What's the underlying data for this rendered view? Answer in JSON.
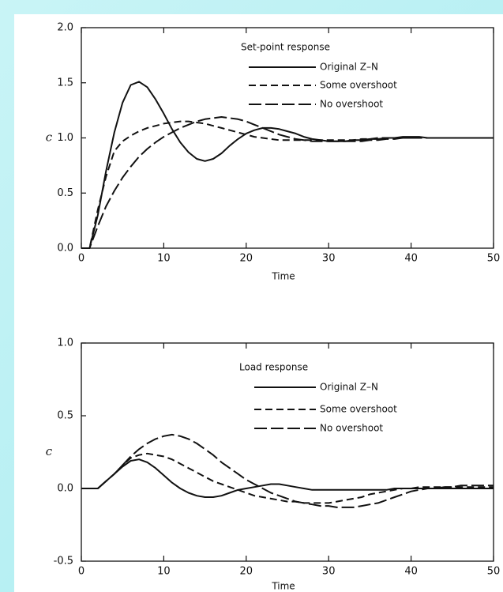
{
  "chart_data": [
    {
      "type": "line",
      "legend_title": "Set-point response",
      "x_label": "Time",
      "y_label": "c",
      "xlim": [
        0,
        50
      ],
      "xticks": [
        0,
        10,
        20,
        30,
        40,
        50
      ],
      "ylim": [
        0,
        2
      ],
      "yticks": [
        {
          "value": 0,
          "label": "0.0"
        },
        0.5,
        {
          "value": 1,
          "label": "1.0"
        },
        1.5,
        {
          "value": 2,
          "label": "2.0"
        }
      ],
      "x": [
        0,
        1,
        2,
        3,
        4,
        5,
        6,
        7,
        8,
        9,
        10,
        11,
        12,
        13,
        14,
        15,
        16,
        17,
        18,
        19,
        20,
        21,
        22,
        23,
        24,
        25,
        26,
        27,
        28,
        29,
        30,
        31,
        32,
        33,
        34,
        35,
        36,
        37,
        38,
        39,
        40,
        41,
        42,
        43,
        44,
        45,
        46,
        47,
        48,
        49,
        50
      ],
      "series": [
        {
          "name": "Original Z–N",
          "color": "#111111",
          "style": "solid",
          "values": [
            0,
            0,
            0.3,
            0.7,
            1.05,
            1.32,
            1.48,
            1.51,
            1.46,
            1.35,
            1.22,
            1.08,
            0.96,
            0.87,
            0.81,
            0.79,
            0.81,
            0.86,
            0.93,
            0.99,
            1.04,
            1.07,
            1.09,
            1.09,
            1.08,
            1.06,
            1.04,
            1.01,
            0.99,
            0.98,
            0.97,
            0.97,
            0.97,
            0.98,
            0.98,
            0.99,
            0.99,
            1.0,
            1.0,
            1.01,
            1.01,
            1.01,
            1.0,
            1.0,
            1.0,
            1.0,
            1.0,
            1.0,
            1.0,
            1.0,
            1.0
          ]
        },
        {
          "name": "Some overshoot",
          "color": "#111111",
          "style": "short-dash",
          "values": [
            0,
            0,
            0.35,
            0.65,
            0.88,
            0.97,
            1.02,
            1.06,
            1.09,
            1.11,
            1.13,
            1.14,
            1.15,
            1.15,
            1.14,
            1.13,
            1.11,
            1.09,
            1.07,
            1.05,
            1.03,
            1.01,
            1.0,
            0.99,
            0.98,
            0.98,
            0.98,
            0.98,
            0.98,
            0.98,
            0.98,
            0.98,
            0.98,
            0.98,
            0.99,
            0.99,
            1.0,
            1.0,
            1.0,
            1.0,
            1.0,
            1.0,
            1.0,
            1.0,
            1.0,
            1.0,
            1.0,
            1.0,
            1.0,
            1.0,
            1.0
          ]
        },
        {
          "name": "No overshoot",
          "color": "#111111",
          "style": "long-dash",
          "values": [
            0,
            0,
            0.2,
            0.38,
            0.52,
            0.64,
            0.74,
            0.83,
            0.9,
            0.96,
            1.01,
            1.05,
            1.09,
            1.12,
            1.15,
            1.17,
            1.18,
            1.19,
            1.18,
            1.17,
            1.15,
            1.12,
            1.09,
            1.06,
            1.03,
            1.01,
            0.99,
            0.98,
            0.97,
            0.97,
            0.97,
            0.97,
            0.97,
            0.97,
            0.97,
            0.98,
            0.98,
            0.99,
            0.99,
            1.0,
            1.0,
            1.0,
            1.0,
            1.0,
            1.0,
            1.0,
            1.0,
            1.0,
            1.0,
            1.0,
            1.0
          ]
        }
      ]
    },
    {
      "type": "line",
      "legend_title": "Load response",
      "x_label": "Time",
      "y_label": "c",
      "xlim": [
        0,
        50
      ],
      "xticks": [
        0,
        10,
        20,
        30,
        40,
        50
      ],
      "ylim": [
        -0.5,
        1
      ],
      "yticks": [
        -0.5,
        {
          "value": 0,
          "label": "0.0"
        },
        0.5,
        {
          "value": 1,
          "label": "1.0"
        }
      ],
      "x": [
        0,
        1,
        2,
        3,
        4,
        5,
        6,
        7,
        8,
        9,
        10,
        11,
        12,
        13,
        14,
        15,
        16,
        17,
        18,
        19,
        20,
        21,
        22,
        23,
        24,
        25,
        26,
        27,
        28,
        29,
        30,
        31,
        32,
        33,
        34,
        35,
        36,
        37,
        38,
        39,
        40,
        41,
        42,
        43,
        44,
        45,
        46,
        47,
        48,
        49,
        50
      ],
      "series": [
        {
          "name": "Original Z–N",
          "color": "#111111",
          "style": "solid",
          "values": [
            0,
            0,
            0,
            0.05,
            0.1,
            0.15,
            0.19,
            0.2,
            0.18,
            0.14,
            0.09,
            0.04,
            0.0,
            -0.03,
            -0.05,
            -0.06,
            -0.06,
            -0.05,
            -0.03,
            -0.01,
            0.0,
            0.01,
            0.02,
            0.03,
            0.03,
            0.02,
            0.01,
            0.0,
            -0.01,
            -0.01,
            -0.01,
            -0.01,
            -0.01,
            -0.01,
            -0.01,
            -0.01,
            -0.01,
            -0.01,
            0,
            0,
            0,
            0,
            0,
            0,
            0,
            0,
            0,
            0,
            0,
            0,
            0
          ]
        },
        {
          "name": "Some overshoot",
          "color": "#111111",
          "style": "short-dash",
          "values": [
            0,
            0,
            0,
            0.05,
            0.1,
            0.16,
            0.21,
            0.23,
            0.24,
            0.23,
            0.22,
            0.2,
            0.17,
            0.14,
            0.11,
            0.08,
            0.05,
            0.03,
            0.01,
            -0.01,
            -0.03,
            -0.05,
            -0.06,
            -0.07,
            -0.08,
            -0.09,
            -0.09,
            -0.1,
            -0.1,
            -0.1,
            -0.1,
            -0.09,
            -0.08,
            -0.07,
            -0.06,
            -0.04,
            -0.03,
            -0.02,
            -0.01,
            0,
            0,
            0.01,
            0.01,
            0.01,
            0.01,
            0.01,
            0.01,
            0.01,
            0.01,
            0.01,
            0.01
          ]
        },
        {
          "name": "No overshoot",
          "color": "#111111",
          "style": "long-dash",
          "values": [
            0,
            0,
            0,
            0.05,
            0.1,
            0.16,
            0.22,
            0.27,
            0.31,
            0.34,
            0.36,
            0.37,
            0.36,
            0.34,
            0.31,
            0.27,
            0.23,
            0.18,
            0.14,
            0.1,
            0.06,
            0.03,
            0,
            -0.03,
            -0.05,
            -0.07,
            -0.09,
            -0.1,
            -0.11,
            -0.12,
            -0.12,
            -0.13,
            -0.13,
            -0.13,
            -0.12,
            -0.11,
            -0.1,
            -0.08,
            -0.06,
            -0.04,
            -0.02,
            -0.01,
            0,
            0,
            0.01,
            0.01,
            0.02,
            0.02,
            0.02,
            0.02,
            0.02
          ]
        }
      ]
    }
  ]
}
